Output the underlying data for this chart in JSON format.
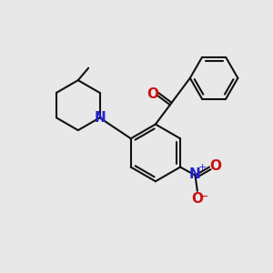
{
  "background_color": "#e8e8e8",
  "bond_color": "#111111",
  "bond_width": 1.5,
  "N_color": "#2222cc",
  "O_color": "#cc1111",
  "font_size": 11,
  "figsize": [
    3.0,
    3.0
  ],
  "dpi": 100,
  "xlim": [
    0,
    10
  ],
  "ylim": [
    0,
    10
  ]
}
